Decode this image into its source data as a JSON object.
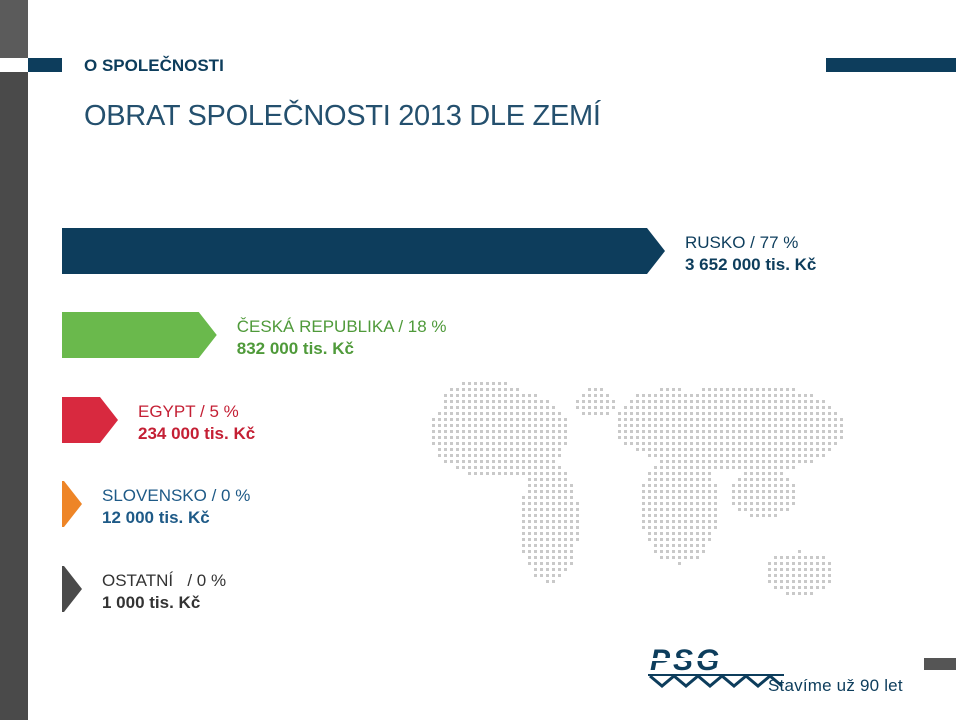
{
  "header": {
    "section_title": "O SPOLEČNOSTI",
    "page_title": "OBRAT SPOLEČNOSTI 2013 DLE ZEMÍ"
  },
  "chart_data": {
    "type": "bar",
    "orientation": "horizontal",
    "categories": [
      "RUSKO / 77 %",
      "ČESKÁ REPUBLIKA / 18 %",
      "EGYPT / 5 %",
      "SLOVENSKO / 0 %",
      "OSTATNÍ   / 0 %"
    ],
    "values": [
      77,
      18,
      5,
      0,
      0
    ],
    "value_labels": [
      "3 652 000 tis. Kč",
      "832 000 tis. Kč",
      "234 000 tis. Kč",
      "12 000 tis. Kč",
      "1 000 tis. Kč"
    ],
    "colors": [
      "#0d3d5c",
      "#6ab94c",
      "#d8293f",
      "#ee8527",
      "#4a4a4a"
    ]
  },
  "logo": {
    "brand": "PSG",
    "tagline": "Stavíme už 90 let"
  }
}
